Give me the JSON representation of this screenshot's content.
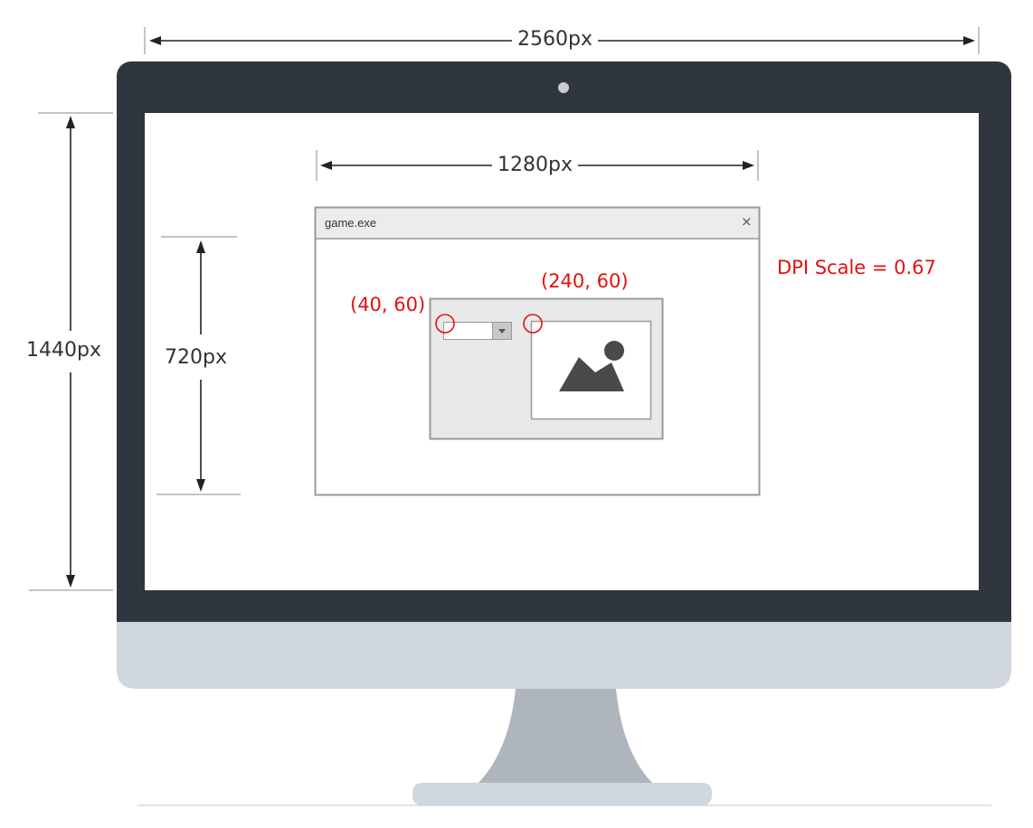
{
  "diagram": {
    "monitor_width_label": "2560px",
    "monitor_height_label": "1440px",
    "window_width_label": "1280px",
    "window_height_label": "720px",
    "dpi_label": "DPI Scale = 0.67",
    "point_a_label": "(40, 60)",
    "point_b_label": "(240, 60)"
  },
  "window": {
    "title": "game.exe",
    "close_glyph": "×"
  },
  "colors": {
    "bezel": "#30363f",
    "stand": "#d1d7df",
    "stand_neck": "#aeb5bd",
    "annotation": "#e31010"
  }
}
